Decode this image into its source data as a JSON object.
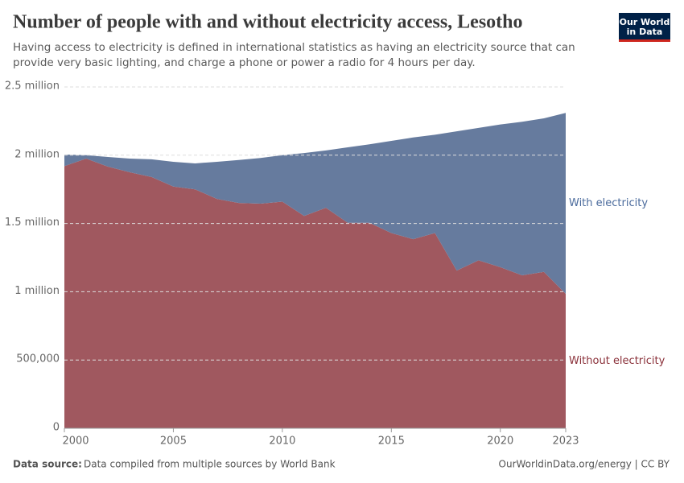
{
  "chart_data": {
    "type": "stacked-area",
    "title": "Number of people with and without electricity access, Lesotho",
    "subtitle": "Having access to electricity is defined in international statistics as having an electricity source that can provide very basic lighting, and charge a phone or power a radio for 4 hours per day.",
    "x": [
      2000,
      2001,
      2002,
      2003,
      2004,
      2005,
      2006,
      2007,
      2008,
      2009,
      2010,
      2011,
      2012,
      2013,
      2014,
      2015,
      2016,
      2017,
      2018,
      2019,
      2020,
      2021,
      2022,
      2023
    ],
    "series": [
      {
        "name": "Without electricity",
        "color": "#a0585f",
        "label_color": "#8a3039",
        "values": [
          1920000,
          1975000,
          1916000,
          1875000,
          1840000,
          1770000,
          1750000,
          1680000,
          1650000,
          1645000,
          1660000,
          1555000,
          1615000,
          1505000,
          1505000,
          1430000,
          1385000,
          1430000,
          1155000,
          1230000,
          1180000,
          1120000,
          1145000,
          985000
        ]
      },
      {
        "name": "With electricity",
        "color": "#667b9e",
        "label_color": "#4a6a9c",
        "values": [
          85000,
          25000,
          71000,
          100000,
          130000,
          182000,
          190000,
          272000,
          315000,
          335000,
          340000,
          461000,
          420000,
          553000,
          575000,
          675000,
          745000,
          720000,
          1020000,
          970000,
          1045000,
          1125000,
          1125000,
          1325000
        ]
      }
    ],
    "xlim": [
      2000,
      2023
    ],
    "xticks": [
      2000,
      2005,
      2010,
      2015,
      2020,
      2023
    ],
    "ylim": [
      0,
      2500000
    ],
    "yticks": [
      0,
      {
        "value": 500000,
        "label": "500,000"
      },
      {
        "value": 1000000,
        "label": "1 million"
      },
      {
        "value": 1500000,
        "label": "1.5 million"
      },
      {
        "value": 2000000,
        "label": "2 million"
      },
      {
        "value": 2500000,
        "label": "2.5 million"
      }
    ],
    "grid": true
  },
  "footer": {
    "source_label": "Data source:",
    "source": "Data compiled from multiple sources by World Bank",
    "credit": "OurWorldinData.org/energy | CC BY"
  },
  "logo": {
    "line1": "Our World",
    "line2": "in Data"
  }
}
